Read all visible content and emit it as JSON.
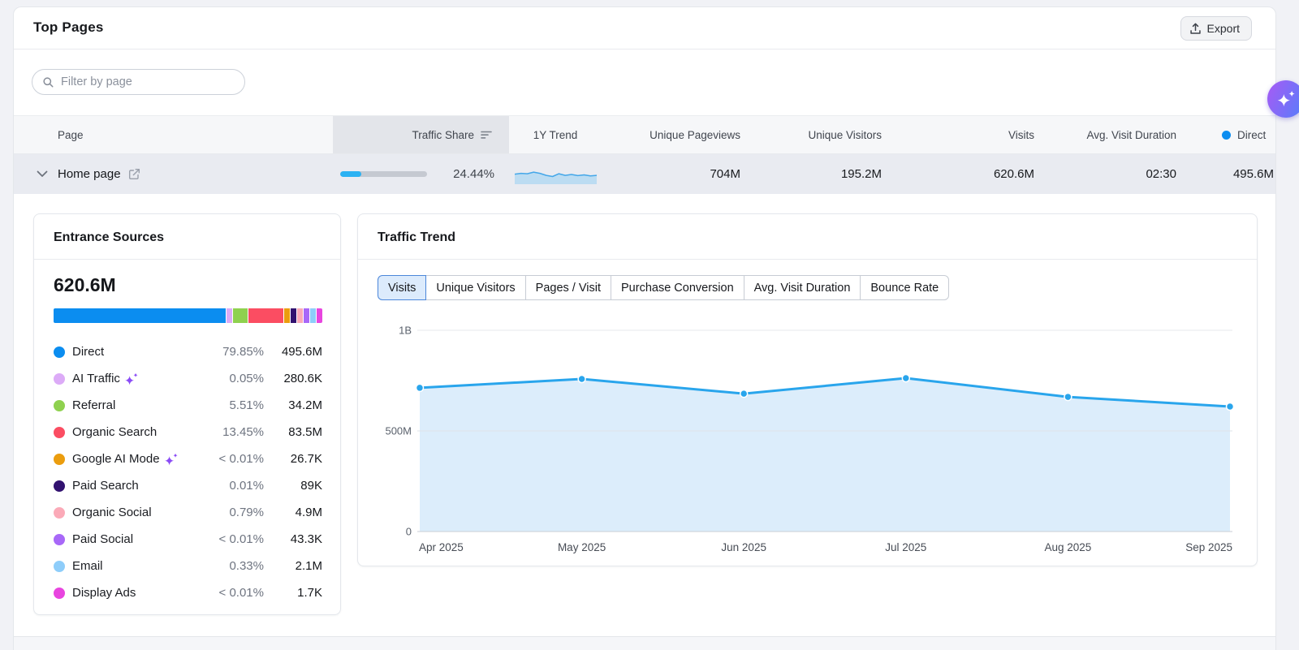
{
  "header": {
    "title": "Top Pages",
    "export_label": "Export"
  },
  "toolbar": {
    "filter_placeholder": "Filter by page"
  },
  "table": {
    "columns": {
      "page": "Page",
      "traffic_share": "Traffic Share",
      "trend": "1Y Trend",
      "unique_pageviews": "Unique Pageviews",
      "unique_visitors": "Unique Visitors",
      "visits": "Visits",
      "avg_visit_duration": "Avg. Visit Duration",
      "direct": "Direct"
    },
    "direct_dot_color": "#0b8df0",
    "row": {
      "page": "Home page",
      "traffic_share_pct": "24.44%",
      "traffic_share_value": 24.44,
      "unique_pageviews": "704M",
      "unique_visitors": "195.2M",
      "visits": "620.6M",
      "avg_visit_duration": "02:30",
      "direct": "495.6M",
      "sparkline": [
        0.52,
        0.58,
        0.55,
        0.66,
        0.58,
        0.44,
        0.36,
        0.55,
        0.44,
        0.5,
        0.42,
        0.47,
        0.4,
        0.44
      ],
      "sparkline_line_color": "#44a7e9",
      "sparkline_fill_color": "#bcdcf2"
    }
  },
  "entrance_sources": {
    "title": "Entrance Sources",
    "total": "620.6M",
    "items": [
      {
        "label": "Direct",
        "pct_label": "79.85%",
        "pct": 79.85,
        "value": "495.6M",
        "color": "#0b8df0",
        "ai_badge": false
      },
      {
        "label": "AI Traffic",
        "pct_label": "0.05%",
        "pct": 0.05,
        "value": "280.6K",
        "color": "#dcabf7",
        "ai_badge": true
      },
      {
        "label": "Referral",
        "pct_label": "5.51%",
        "pct": 5.51,
        "value": "34.2M",
        "color": "#8fd14f",
        "ai_badge": false
      },
      {
        "label": "Organic Search",
        "pct_label": "13.45%",
        "pct": 13.45,
        "value": "83.5M",
        "color": "#fb4d62",
        "ai_badge": false
      },
      {
        "label": "Google AI Mode",
        "pct_label": "< 0.01%",
        "pct": 0.005,
        "value": "26.7K",
        "color": "#eb9d0e",
        "ai_badge": true
      },
      {
        "label": "Paid Search",
        "pct_label": "0.01%",
        "pct": 0.01,
        "value": "89K",
        "color": "#321270",
        "ai_badge": false
      },
      {
        "label": "Organic Social",
        "pct_label": "0.79%",
        "pct": 0.79,
        "value": "4.9M",
        "color": "#fbaab8",
        "ai_badge": false
      },
      {
        "label": "Paid Social",
        "pct_label": "< 0.01%",
        "pct": 0.005,
        "value": "43.3K",
        "color": "#a868f8",
        "ai_badge": false
      },
      {
        "label": "Email",
        "pct_label": "0.33%",
        "pct": 0.33,
        "value": "2.1M",
        "color": "#8ecdfa",
        "ai_badge": false
      },
      {
        "label": "Display Ads",
        "pct_label": "< 0.01%",
        "pct": 0.005,
        "value": "1.7K",
        "color": "#e845df",
        "ai_badge": false
      }
    ],
    "sparkle_color": "#8b4cf6"
  },
  "traffic_trend": {
    "title": "Traffic Trend",
    "tabs": [
      {
        "label": "Visits",
        "active": true
      },
      {
        "label": "Unique Visitors",
        "active": false
      },
      {
        "label": "Pages / Visit",
        "active": false
      },
      {
        "label": "Purchase Conversion",
        "active": false
      },
      {
        "label": "Avg. Visit Duration",
        "active": false
      },
      {
        "label": "Bounce Rate",
        "active": false
      }
    ]
  },
  "chart_data": {
    "type": "area",
    "title": "Traffic Trend",
    "series": [
      {
        "name": "Visits",
        "values_millions": [
          714,
          758,
          685,
          762,
          669,
          621
        ]
      }
    ],
    "x": [
      "Apr 2025",
      "May 2025",
      "Jun 2025",
      "Jul 2025",
      "Aug 2025",
      "Sep 2025"
    ],
    "y_ticks": [
      {
        "label": "0",
        "value": 0
      },
      {
        "label": "500M",
        "value": 500
      },
      {
        "label": "1B",
        "value": 1000
      }
    ],
    "ylim": [
      0,
      1000
    ],
    "grid": true,
    "legend_position": "none",
    "line_color": "#29a5ec",
    "fill_color": "#dcedfb",
    "tick_color": "#5a616c",
    "xtick_color": "#474c55"
  },
  "fab": {
    "name": "AI assistant"
  }
}
